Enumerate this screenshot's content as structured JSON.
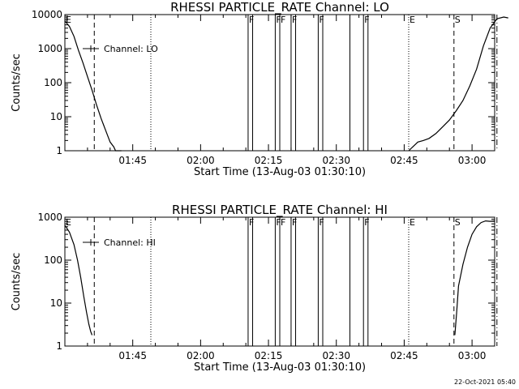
{
  "timestamp": "22-Oct-2021 05:40",
  "chart_data": [
    {
      "type": "line",
      "title": "RHESSI PARTICLE_RATE Channel: LO",
      "xlabel": "Start Time (13-Aug-03 01:30:10)",
      "ylabel": "Counts/sec",
      "yscale": "log",
      "xlim_minutes": [
        0,
        95
      ],
      "ylim": [
        1,
        10000
      ],
      "yticks": [
        {
          "value": 1,
          "label": "1"
        },
        {
          "value": 10,
          "label": "10"
        },
        {
          "value": 100,
          "label": "100"
        },
        {
          "value": 1000,
          "label": "1000"
        },
        {
          "value": 10000,
          "label": "10000"
        }
      ],
      "xticks": [
        {
          "t": 15,
          "label": "01:45"
        },
        {
          "t": 30,
          "label": "02:00"
        },
        {
          "t": 45,
          "label": "02:15"
        },
        {
          "t": 60,
          "label": "02:30"
        },
        {
          "t": 75,
          "label": "02:45"
        },
        {
          "t": 90,
          "label": "03:00"
        }
      ],
      "legend": "Channel: LO",
      "series": [
        {
          "name": "Channel: LO",
          "segments": [
            {
              "t": [
                0,
                1,
                2,
                3,
                4,
                5,
                6,
                7,
                8,
                9,
                10,
                10.8,
                11.2,
                12.5
              ],
              "y": [
                6500,
                4500,
                2300,
                900,
                380,
                150,
                60,
                22,
                9,
                4,
                1.8,
                1.3,
                1,
                1
              ]
            },
            {
              "t": [
                76,
                78,
                79.2,
                80.5,
                82,
                83.5,
                85,
                86.5,
                88,
                89.5,
                91,
                92.5,
                94,
                95.5,
                97,
                98
              ],
              "y": [
                1,
                1.8,
                2,
                2.3,
                3.2,
                5,
                8,
                15,
                30,
                80,
                250,
                1200,
                4000,
                7500,
                8500,
                8000
              ]
            }
          ]
        }
      ],
      "markers": [
        {
          "t": 0,
          "label": "E",
          "style": "dot"
        },
        {
          "t": 6.5,
          "label": "",
          "style": "dash"
        },
        {
          "t": 19,
          "label": "",
          "style": "dot"
        },
        {
          "t": 40.5,
          "label": "F",
          "style": "solid"
        },
        {
          "t": 41.5,
          "label": "",
          "style": "solid"
        },
        {
          "t": 46.5,
          "label": "F",
          "style": "solid"
        },
        {
          "t": 47.5,
          "label": "F",
          "style": "solid"
        },
        {
          "t": 50,
          "label": "F",
          "style": "solid"
        },
        {
          "t": 51,
          "label": "",
          "style": "solid"
        },
        {
          "t": 56,
          "label": "F",
          "style": "solid"
        },
        {
          "t": 57,
          "label": "",
          "style": "solid"
        },
        {
          "t": 63,
          "label": "",
          "style": "solid"
        },
        {
          "t": 66,
          "label": "F",
          "style": "solid"
        },
        {
          "t": 67,
          "label": "",
          "style": "solid"
        },
        {
          "t": 76,
          "label": "E",
          "style": "dot"
        },
        {
          "t": 86,
          "label": "S",
          "style": "dash"
        },
        {
          "t": 95.5,
          "label": "",
          "style": "dashdot"
        }
      ]
    },
    {
      "type": "line",
      "title": "RHESSI PARTICLE_RATE Channel: HI",
      "xlabel": "Start Time (13-Aug-03 01:30:10)",
      "ylabel": "Counts/sec",
      "yscale": "log",
      "xlim_minutes": [
        0,
        95
      ],
      "ylim": [
        1,
        1000
      ],
      "yticks": [
        {
          "value": 1,
          "label": "1"
        },
        {
          "value": 10,
          "label": "10"
        },
        {
          "value": 100,
          "label": "100"
        },
        {
          "value": 1000,
          "label": "1000"
        }
      ],
      "xticks": [
        {
          "t": 15,
          "label": "01:45"
        },
        {
          "t": 30,
          "label": "02:00"
        },
        {
          "t": 45,
          "label": "02:15"
        },
        {
          "t": 60,
          "label": "02:30"
        },
        {
          "t": 75,
          "label": "02:45"
        },
        {
          "t": 90,
          "label": "03:00"
        }
      ],
      "legend": "Channel: HI",
      "series": [
        {
          "name": "Channel: HI",
          "segments": [
            {
              "t": [
                0,
                1,
                2,
                2.8,
                3.5,
                4.2,
                4.8,
                5.3,
                5.7,
                6
              ],
              "y": [
                650,
                450,
                230,
                100,
                40,
                14,
                6,
                3.2,
                2.2,
                1.8
              ]
            },
            {
              "t": [
                86.2,
                86.6,
                87,
                88,
                89,
                90,
                91,
                92,
                93,
                94,
                95
              ],
              "y": [
                1.8,
                6,
                25,
                80,
                200,
                400,
                600,
                750,
                820,
                800,
                820
              ]
            }
          ]
        }
      ],
      "markers": [
        {
          "t": 0,
          "label": "E",
          "style": "dot"
        },
        {
          "t": 6.5,
          "label": "",
          "style": "dash"
        },
        {
          "t": 19,
          "label": "",
          "style": "dot"
        },
        {
          "t": 40.5,
          "label": "F",
          "style": "solid"
        },
        {
          "t": 41.5,
          "label": "",
          "style": "solid"
        },
        {
          "t": 46.5,
          "label": "F",
          "style": "solid"
        },
        {
          "t": 47.5,
          "label": "F",
          "style": "solid"
        },
        {
          "t": 50,
          "label": "F",
          "style": "solid"
        },
        {
          "t": 51,
          "label": "",
          "style": "solid"
        },
        {
          "t": 56,
          "label": "F",
          "style": "solid"
        },
        {
          "t": 57,
          "label": "",
          "style": "solid"
        },
        {
          "t": 63,
          "label": "",
          "style": "solid"
        },
        {
          "t": 66,
          "label": "F",
          "style": "solid"
        },
        {
          "t": 67,
          "label": "",
          "style": "solid"
        },
        {
          "t": 76,
          "label": "E",
          "style": "dot"
        },
        {
          "t": 86,
          "label": "S",
          "style": "dash"
        },
        {
          "t": 95.5,
          "label": "",
          "style": "dashdot"
        }
      ]
    }
  ]
}
